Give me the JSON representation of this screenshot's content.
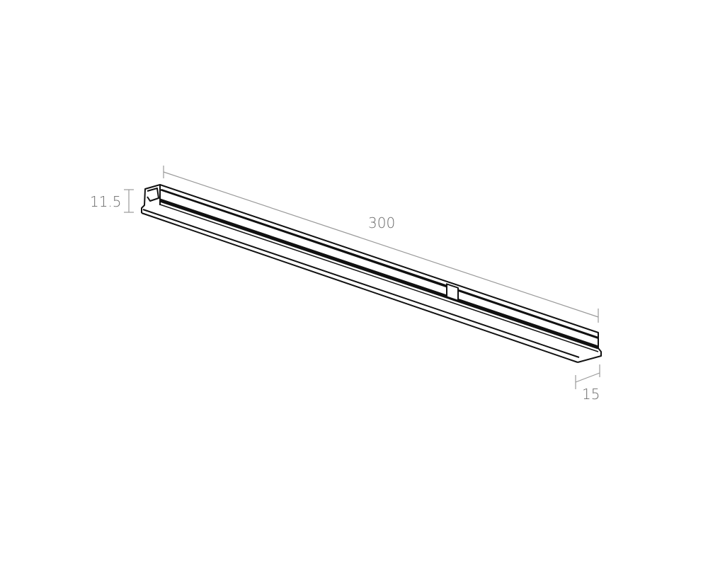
{
  "dimensions": {
    "length": "300",
    "height": "11.5",
    "width": "15"
  },
  "colors": {
    "outline": "#111111",
    "dimension": "#9a9a9a",
    "label": "#6b6b6b"
  }
}
